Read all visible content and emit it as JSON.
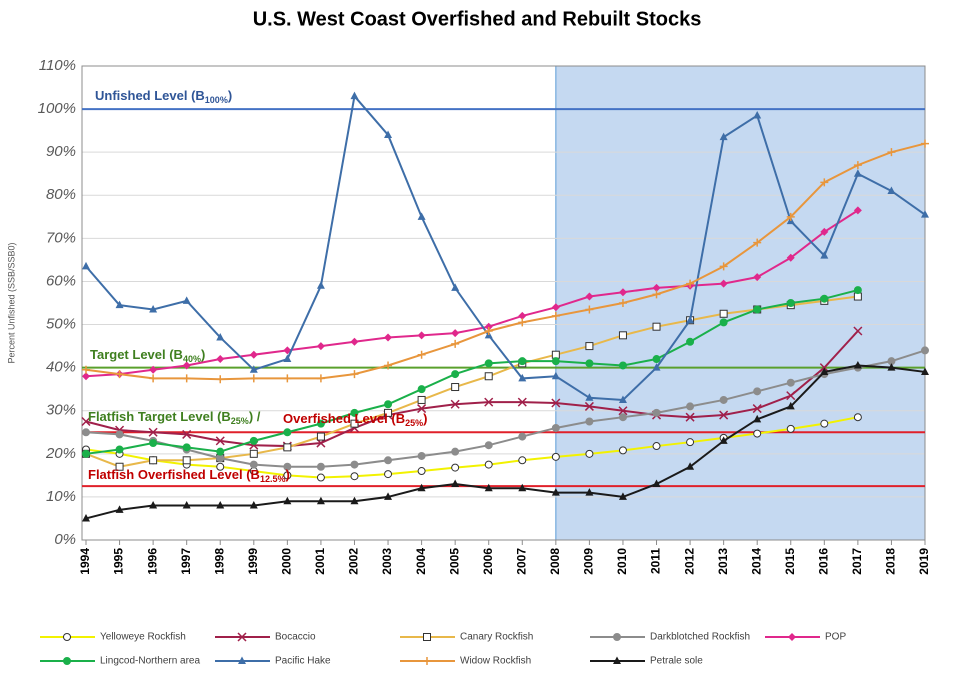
{
  "chart_data": {
    "type": "line",
    "title": "U.S. West Coast Overfished and Rebuilt Stocks",
    "y_label": "Percent Unfished (SSB/SSB0)",
    "x": [
      1994,
      1995,
      1996,
      1997,
      1998,
      1999,
      2000,
      2001,
      2002,
      2003,
      2004,
      2005,
      2006,
      2007,
      2008,
      2009,
      2010,
      2011,
      2012,
      2013,
      2014,
      2015,
      2016,
      2017,
      2018,
      2019
    ],
    "xlim": [
      1994,
      2019
    ],
    "xticks": [
      1994,
      1995,
      1996,
      1997,
      1998,
      1999,
      2000,
      2001,
      2002,
      2003,
      2004,
      2005,
      2006,
      2007,
      2008,
      2009,
      2010,
      2011,
      2012,
      2013,
      2014,
      2015,
      2016,
      2017,
      2018,
      2019
    ],
    "ylim": [
      0,
      110
    ],
    "yticks": [
      {
        "value": 0,
        "label": "0%"
      },
      {
        "value": 10,
        "label": "10%"
      },
      {
        "value": 20,
        "label": "20%"
      },
      {
        "value": 30,
        "label": "30%"
      },
      {
        "value": 40,
        "label": "40%"
      },
      {
        "value": 50,
        "label": "50%"
      },
      {
        "value": 60,
        "label": "60%"
      },
      {
        "value": 70,
        "label": "70%"
      },
      {
        "value": 80,
        "label": "80%"
      },
      {
        "value": 90,
        "label": "90%"
      },
      {
        "value": 100,
        "label": "100%"
      },
      {
        "value": 110,
        "label": "110%"
      }
    ],
    "grid": true,
    "highlight_region": [
      2008,
      2019
    ],
    "highlight_color": "#c5d9f1",
    "reference_lines": [
      {
        "value": 100,
        "color": "#4472c4"
      },
      {
        "value": 40,
        "color": "#5aa02c"
      },
      {
        "value": 25,
        "color": "#e0202a"
      },
      {
        "value": 12.5,
        "color": "#e0202a"
      }
    ],
    "annotations": [
      {
        "text": "Unfished Level (B",
        "sub": "100%",
        "end": ")",
        "color": "#2f5597"
      },
      {
        "text": "Target Level (B",
        "sub": "40%",
        "end": ")",
        "color": "#3f7f1f"
      },
      {
        "text": "Flatfish Target Level (B",
        "sub": "25%",
        "end": ") /",
        "color": "#3f7f1f"
      },
      {
        "text": "Overfished Level (B",
        "sub": "25%",
        "end": ")",
        "color": "#c00000"
      },
      {
        "text": "Flatfish Overfished Level (B",
        "sub": "12.5%",
        "end": ")",
        "color": "#c00000"
      }
    ],
    "legend": "bottom",
    "series": [
      {
        "name": "Yelloweye Rockfish",
        "color": "#f2f200",
        "marker": "circle-open",
        "values": [
          21,
          20,
          18.5,
          17.5,
          17,
          16,
          15,
          14.5,
          14.8,
          15.3,
          16,
          16.8,
          17.5,
          18.5,
          19.3,
          20,
          20.8,
          21.8,
          22.7,
          23.7,
          24.7,
          25.8,
          27,
          28.5,
          null,
          null
        ]
      },
      {
        "name": "Bocaccio",
        "color": "#a0204a",
        "marker": "x",
        "values": [
          27.5,
          25.5,
          25,
          24.5,
          23,
          22,
          21.8,
          22.5,
          26,
          29,
          30.5,
          31.5,
          32,
          32,
          31.8,
          31,
          30,
          29,
          28.5,
          29,
          30.5,
          33.5,
          40,
          48.5,
          null,
          null
        ]
      },
      {
        "name": "Canary Rockfish",
        "color": "#e8b84a",
        "marker": "square-open",
        "values": [
          20,
          17,
          18.5,
          18.5,
          19,
          20,
          21.5,
          24,
          27,
          29.5,
          32.5,
          35.5,
          38,
          41,
          43,
          45,
          47.5,
          49.5,
          51,
          52.5,
          53.5,
          54.5,
          55.5,
          56.5,
          null,
          null
        ]
      },
      {
        "name": "Darkblotched Rockfish",
        "color": "#8c8c8c",
        "marker": "circle",
        "values": [
          25,
          24.5,
          23,
          21,
          19,
          17.5,
          17,
          17,
          17.5,
          18.5,
          19.5,
          20.5,
          22,
          24,
          26,
          27.5,
          28.5,
          29.5,
          31,
          32.5,
          34.5,
          36.5,
          38.5,
          40,
          41.5,
          44
        ]
      },
      {
        "name": "POP",
        "color": "#e0288c",
        "marker": "diamond",
        "values": [
          38,
          38.5,
          39.5,
          40.5,
          42,
          43,
          44,
          45,
          46,
          47,
          47.5,
          48,
          49.5,
          52,
          54,
          56.5,
          57.5,
          58.5,
          59,
          59.5,
          61,
          65.5,
          71.5,
          76.5,
          null,
          null
        ]
      },
      {
        "name": "Lingcod-Northern area",
        "color": "#1ab04a",
        "marker": "circle",
        "values": [
          20,
          21,
          22.5,
          21.5,
          20.5,
          23,
          25,
          27,
          29.5,
          31.5,
          35,
          38.5,
          41,
          41.5,
          41.5,
          41,
          40.5,
          42,
          46,
          50.5,
          53.5,
          55,
          56,
          58,
          null,
          null
        ]
      },
      {
        "name": "Pacific Hake",
        "color": "#3e6ea8",
        "marker": "triangle",
        "values": [
          63.5,
          54.5,
          53.5,
          55.5,
          47,
          39.5,
          42,
          59,
          103,
          94,
          75,
          58.5,
          47.5,
          37.5,
          38,
          33,
          32.5,
          40,
          51,
          93.5,
          98.5,
          74,
          66,
          85,
          81,
          75.5
        ]
      },
      {
        "name": "Widow Rockfish",
        "color": "#e8963c",
        "marker": "plus",
        "values": [
          39.5,
          38.5,
          37.5,
          37.5,
          37.3,
          37.5,
          37.5,
          37.5,
          38.5,
          40.5,
          43,
          45.5,
          48.5,
          50.5,
          52,
          53.5,
          55,
          57,
          59.5,
          63.5,
          69,
          75,
          83,
          87,
          90,
          92
        ]
      },
      {
        "name": "Petrale sole",
        "color": "#1a1a1a",
        "marker": "triangle",
        "values": [
          5,
          7,
          8,
          8,
          8,
          8,
          9,
          9,
          9,
          10,
          12,
          13,
          12,
          12,
          11,
          11,
          10,
          13,
          17,
          23,
          28,
          31,
          39,
          40.5,
          40,
          39
        ]
      }
    ]
  }
}
